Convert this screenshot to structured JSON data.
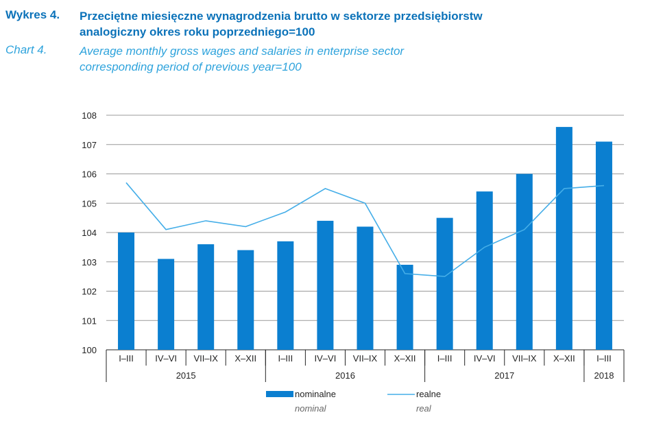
{
  "header": {
    "label_pl": "Wykres 4.",
    "title_pl_line1": "Przeciętne miesięczne wynagrodzenia brutto w sektorze przedsiębiorstw",
    "title_pl_line2": "analogiczny okres roku poprzedniego=100",
    "label_en": "Chart 4.",
    "title_en_line1": "Average monthly gross wages and salaries in enterprise sector",
    "title_en_line2": "corresponding period of previous year=100"
  },
  "colors": {
    "bar": "#0b7fd0",
    "line": "#45aee8",
    "grid": "#999999",
    "title_pl": "#0b72b9",
    "title_en": "#2ea3dc"
  },
  "chart_data": {
    "type": "bar+line",
    "categories": [
      "I–III",
      "IV–VI",
      "VII–IX",
      "X–XII",
      "I–III",
      "IV–VI",
      "VII–IX",
      "X–XII",
      "I–III",
      "IV–VI",
      "VII–IX",
      "X–XII",
      "I–III"
    ],
    "years": [
      {
        "label": "2015",
        "span": 4
      },
      {
        "label": "2016",
        "span": 4
      },
      {
        "label": "2017",
        "span": 4
      },
      {
        "label": "2018",
        "span": 1
      }
    ],
    "series": [
      {
        "name": "nominalne",
        "name_en": "nominal",
        "type": "bar",
        "values": [
          104.0,
          103.1,
          103.6,
          103.4,
          103.7,
          104.4,
          104.2,
          102.9,
          104.5,
          105.4,
          106.0,
          107.6,
          107.1
        ]
      },
      {
        "name": "realne",
        "name_en": "real",
        "type": "line",
        "values": [
          105.7,
          104.1,
          104.4,
          104.2,
          104.7,
          105.5,
          105.0,
          102.6,
          102.5,
          103.5,
          104.1,
          105.5,
          105.6
        ]
      }
    ],
    "ylim": [
      100,
      108
    ],
    "yticks": [
      100,
      101,
      102,
      103,
      104,
      105,
      106,
      107,
      108
    ],
    "grid": true,
    "legend": "bottom"
  }
}
